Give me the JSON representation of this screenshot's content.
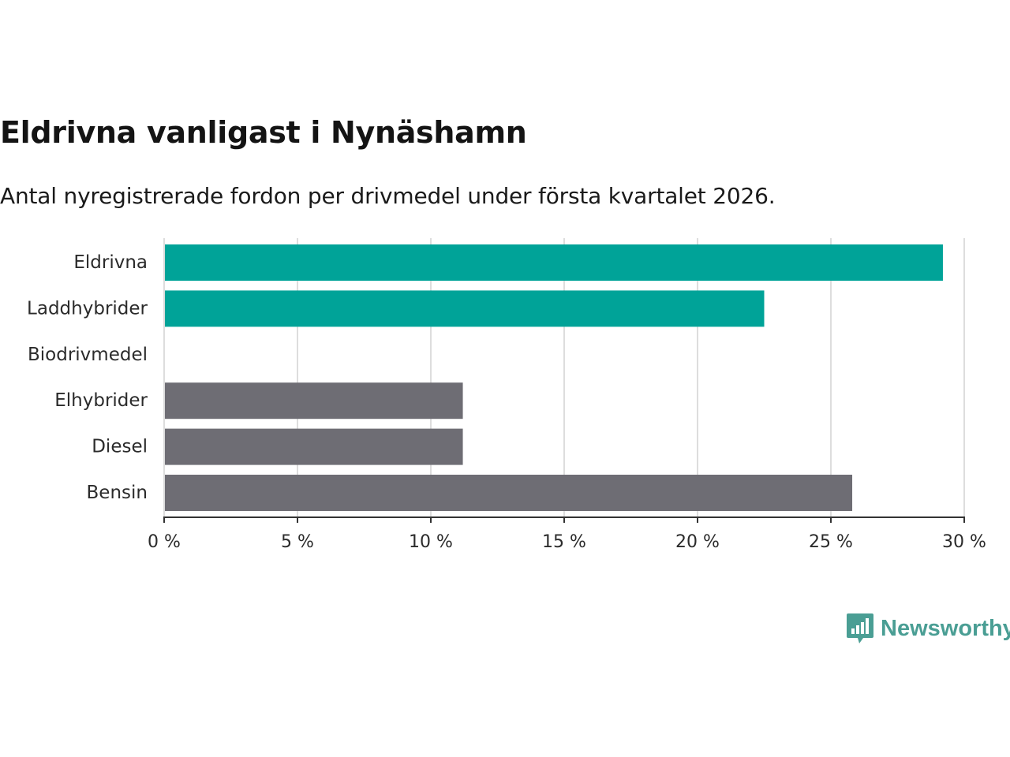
{
  "chart_data": {
    "type": "bar",
    "orientation": "horizontal",
    "title": "Eldrivna vanligast i Nynäshamn",
    "subtitle": "Antal nyregistrerade fordon per drivmedel under första kvartalet 2026.",
    "categories": [
      "Eldrivna",
      "Laddhybrider",
      "Biodrivmedel",
      "Elhybrider",
      "Diesel",
      "Bensin"
    ],
    "values": [
      29.2,
      22.5,
      0,
      11.2,
      11.2,
      25.8
    ],
    "bar_colors": [
      "#00a398",
      "#00a398",
      "#00a398",
      "#6e6d74",
      "#6e6d74",
      "#6e6d74"
    ],
    "xlim": [
      0,
      30
    ],
    "xticks": [
      0,
      5,
      10,
      15,
      20,
      25,
      30
    ],
    "xtick_labels": [
      "0 %",
      "5 %",
      "10 %",
      "15 %",
      "20 %",
      "25 %",
      "30 %"
    ],
    "xlabel": "",
    "ylabel": "",
    "grid": true,
    "unit": "%"
  },
  "branding": {
    "name": "Newsworthy",
    "icon": "newsworthy-logo-icon",
    "color": "#4a9e94"
  },
  "colors": {
    "accent": "#00a398",
    "neutral": "#6e6d74",
    "grid": "#dddddd",
    "axis": "#333333"
  }
}
